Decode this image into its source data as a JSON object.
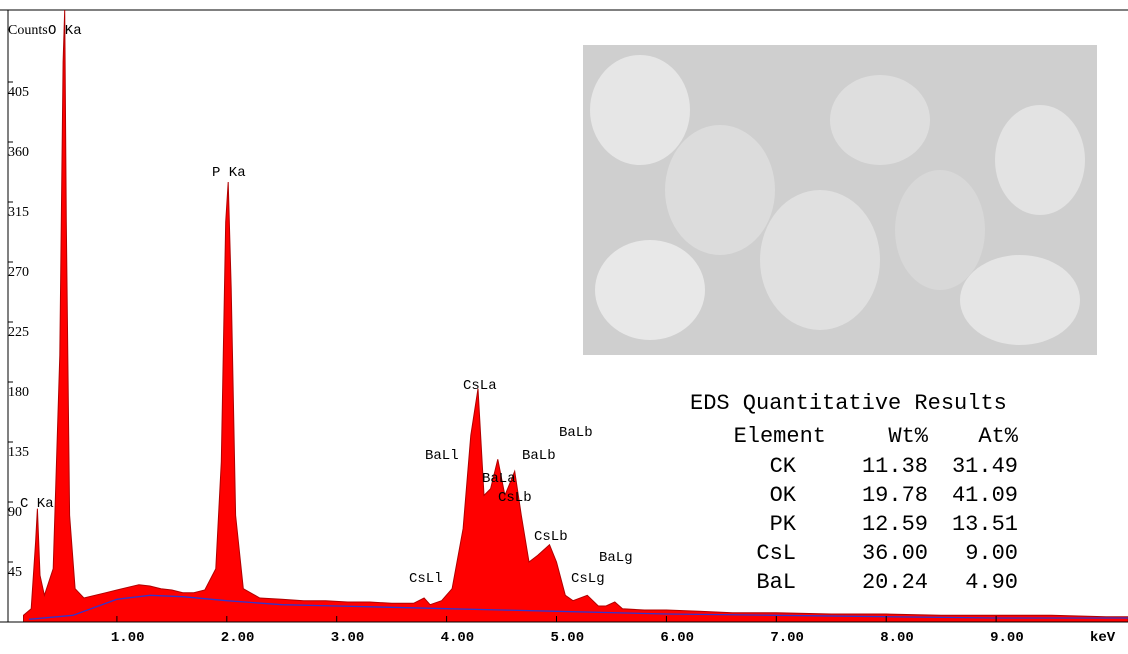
{
  "chart_data": {
    "type": "area",
    "y_label": "Counts",
    "x_label": "keV",
    "xlim": [
      0,
      10.2
    ],
    "ylim": [
      0,
      459
    ],
    "xticks": [
      {
        "value": 1,
        "label": "1.00"
      },
      {
        "value": 2,
        "label": "2.00"
      },
      {
        "value": 3,
        "label": "3.00"
      },
      {
        "value": 4,
        "label": "4.00"
      },
      {
        "value": 5,
        "label": "5.00"
      },
      {
        "value": 6,
        "label": "6.00"
      },
      {
        "value": 7,
        "label": "7.00"
      },
      {
        "value": 8,
        "label": "8.00"
      },
      {
        "value": 9,
        "label": "9.00"
      }
    ],
    "yticks": [
      45,
      90,
      135,
      180,
      225,
      270,
      315,
      360,
      405
    ],
    "series": [
      {
        "kind": "area",
        "color": "#ff0000",
        "x": [
          0.15,
          0.22,
          0.26,
          0.277,
          0.3,
          0.34,
          0.42,
          0.48,
          0.51,
          0.525,
          0.54,
          0.57,
          0.62,
          0.7,
          0.8,
          0.9,
          1.0,
          1.1,
          1.2,
          1.3,
          1.4,
          1.5,
          1.6,
          1.7,
          1.8,
          1.9,
          1.95,
          1.99,
          2.013,
          2.04,
          2.08,
          2.15,
          2.3,
          2.5,
          2.7,
          2.9,
          3.1,
          3.3,
          3.5,
          3.7,
          3.795,
          3.85,
          3.954,
          4.05,
          4.15,
          4.22,
          4.286,
          4.34,
          4.4,
          4.466,
          4.53,
          4.58,
          4.62,
          4.68,
          4.75,
          4.83,
          4.936,
          5.0,
          5.08,
          5.15,
          5.28,
          5.38,
          5.45,
          5.53,
          5.6,
          5.8,
          6.0,
          6.3,
          6.6,
          7.0,
          7.5,
          8.0,
          8.5,
          9.0,
          9.5,
          10.0,
          10.2
        ],
        "values": [
          5,
          10,
          60,
          85,
          35,
          20,
          40,
          200,
          420,
          459,
          300,
          80,
          25,
          18,
          20,
          22,
          24,
          26,
          28,
          27,
          25,
          24,
          22,
          22,
          24,
          40,
          120,
          300,
          330,
          250,
          80,
          25,
          18,
          17,
          16,
          16,
          15,
          15,
          14,
          14,
          18,
          13,
          16,
          25,
          70,
          140,
          175,
          95,
          100,
          122,
          95,
          105,
          113,
          80,
          45,
          50,
          58,
          45,
          20,
          16,
          20,
          12,
          12,
          15,
          10,
          9,
          9,
          8,
          7,
          7,
          6,
          6,
          5,
          5,
          5,
          4,
          4
        ]
      },
      {
        "kind": "line",
        "color": "#3333cc",
        "x": [
          0.2,
          0.6,
          1.0,
          1.3,
          1.6,
          2.0,
          2.5,
          3.0,
          3.5,
          4.0,
          4.5,
          5.0,
          6.0,
          7.0,
          8.0,
          9.0,
          10.2
        ],
        "values": [
          2,
          5,
          17,
          20,
          19,
          16,
          13,
          12,
          11,
          10,
          9,
          8,
          6,
          5,
          4,
          3,
          3
        ]
      }
    ],
    "annotations": [
      "C Ka",
      "O Ka",
      "P Ka",
      "CsLa",
      "BaLl",
      "BaLa",
      "BaLb",
      "BaLb",
      "CsLb",
      "CsLb",
      "CsLl",
      "CsLg",
      "BaLg"
    ]
  },
  "table": {
    "title": "EDS Quantitative Results",
    "header": [
      "Element",
      "Wt%",
      "At%"
    ],
    "rows": [
      [
        "CK",
        "11.38",
        "31.49"
      ],
      [
        "OK",
        "19.78",
        "41.09"
      ],
      [
        "PK",
        "12.59",
        "13.51"
      ],
      [
        "CsL",
        "36.00",
        "9.00"
      ],
      [
        "BaL",
        "20.24",
        "4.90"
      ]
    ]
  }
}
